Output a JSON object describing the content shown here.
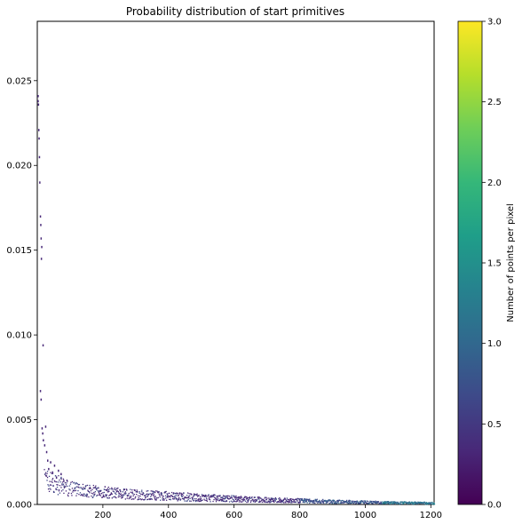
{
  "chart_data": {
    "type": "scatter",
    "title": "Probability distribution of start primitives",
    "xlabel": "",
    "ylabel": "",
    "xlim": [
      0,
      1210
    ],
    "ylim": [
      0,
      0.0285
    ],
    "x_ticks": [
      200,
      400,
      600,
      800,
      1000,
      1200
    ],
    "x_tick_labels": [
      "200",
      "400",
      "600",
      "800",
      "1000",
      "1200"
    ],
    "y_ticks": [
      0,
      0.005,
      0.01,
      0.015,
      0.02,
      0.025
    ],
    "y_tick_labels": [
      "0.000",
      "0.005",
      "0.010",
      "0.015",
      "0.020",
      "0.025"
    ],
    "grid": false,
    "points": [
      {
        "x": 2,
        "y": 0.0241,
        "count": 1
      },
      {
        "x": 2,
        "y": 0.0238,
        "count": 1
      },
      {
        "x": 3,
        "y": 0.0236,
        "count": 1
      },
      {
        "x": 4,
        "y": 0.0221,
        "count": 1
      },
      {
        "x": 5,
        "y": 0.0216,
        "count": 1
      },
      {
        "x": 6,
        "y": 0.0205,
        "count": 1
      },
      {
        "x": 7,
        "y": 0.019,
        "count": 1
      },
      {
        "x": 9,
        "y": 0.017,
        "count": 1
      },
      {
        "x": 10,
        "y": 0.0165,
        "count": 1
      },
      {
        "x": 11,
        "y": 0.0157,
        "count": 1
      },
      {
        "x": 12,
        "y": 0.0145,
        "count": 1
      },
      {
        "x": 13,
        "y": 0.0152,
        "count": 1
      },
      {
        "x": 17,
        "y": 0.0094,
        "count": 1
      },
      {
        "x": 9,
        "y": 0.0067,
        "count": 1
      },
      {
        "x": 11,
        "y": 0.0062,
        "count": 1
      },
      {
        "x": 14,
        "y": 0.0045,
        "count": 1
      },
      {
        "x": 16,
        "y": 0.0042,
        "count": 1
      },
      {
        "x": 18,
        "y": 0.0038,
        "count": 1
      },
      {
        "x": 22,
        "y": 0.0035,
        "count": 1
      },
      {
        "x": 25,
        "y": 0.0046,
        "count": 1
      },
      {
        "x": 28,
        "y": 0.0031,
        "count": 1
      },
      {
        "x": 31,
        "y": 0.0026,
        "count": 1
      },
      {
        "x": 34,
        "y": 0.0021,
        "count": 1
      },
      {
        "x": 40,
        "y": 0.0025,
        "count": 1
      },
      {
        "x": 46,
        "y": 0.0019,
        "count": 1
      },
      {
        "x": 52,
        "y": 0.0023,
        "count": 1
      },
      {
        "x": 58,
        "y": 0.0016,
        "count": 1
      },
      {
        "x": 64,
        "y": 0.002,
        "count": 1
      },
      {
        "x": 72,
        "y": 0.0018,
        "count": 1
      },
      {
        "x": 80,
        "y": 0.0014,
        "count": 1
      }
    ],
    "density": {
      "x_start": 20,
      "x_end": 1210,
      "upper_band": [
        [
          20,
          0.0022
        ],
        [
          60,
          0.0018
        ],
        [
          100,
          0.0014
        ],
        [
          150,
          0.0012
        ],
        [
          200,
          0.0011
        ],
        [
          300,
          0.0009
        ],
        [
          400,
          0.0008
        ],
        [
          500,
          0.00065
        ],
        [
          600,
          0.00055
        ],
        [
          700,
          0.00045
        ],
        [
          800,
          0.00038
        ],
        [
          900,
          0.0003
        ],
        [
          1000,
          0.00025
        ],
        [
          1100,
          0.0002
        ],
        [
          1210,
          0.00016
        ]
      ],
      "lower_band": [
        [
          20,
          0.0008
        ],
        [
          60,
          0.0006
        ],
        [
          100,
          0.0005
        ],
        [
          150,
          0.00045
        ],
        [
          200,
          0.0004
        ],
        [
          300,
          0.00032
        ],
        [
          400,
          0.00026
        ],
        [
          500,
          0.0002
        ],
        [
          600,
          0.00017
        ],
        [
          700,
          0.00014
        ],
        [
          800,
          0.00012
        ],
        [
          900,
          0.0001
        ],
        [
          1000,
          8e-05
        ],
        [
          1100,
          6e-05
        ],
        [
          1210,
          4e-05
        ]
      ]
    },
    "colorbar": {
      "label": "Number of points per pixel",
      "range": [
        0,
        3
      ],
      "ticks": [
        0,
        0.5,
        1,
        1.5,
        2,
        2.5,
        3
      ],
      "tick_labels": [
        "0.0",
        "0.5",
        "1.0",
        "1.5",
        "2.0",
        "2.5",
        "3.0"
      ],
      "colormap": [
        "#440154",
        "#482878",
        "#3e4989",
        "#31688e",
        "#26828e",
        "#1f9e89",
        "#35b779",
        "#6ece58",
        "#b5de2b",
        "#fde725"
      ]
    }
  }
}
